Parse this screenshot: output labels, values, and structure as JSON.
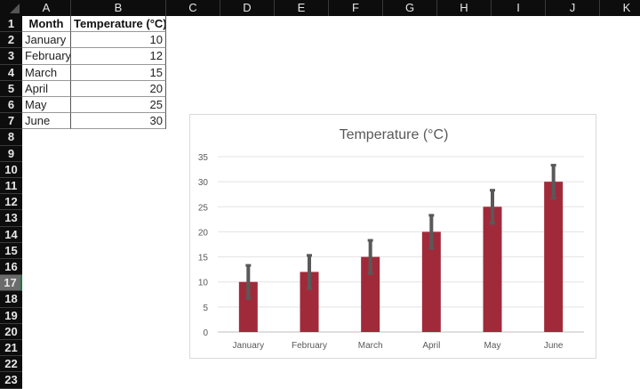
{
  "sheet": {
    "columns": [
      "A",
      "B",
      "C",
      "D",
      "E",
      "F",
      "G",
      "H",
      "I",
      "J",
      "K"
    ],
    "rows": [
      1,
      2,
      3,
      4,
      5,
      6,
      7,
      8,
      9,
      10,
      11,
      12,
      13,
      14,
      15,
      16,
      17,
      18,
      19,
      20,
      21,
      22,
      23
    ],
    "selected_row": 17,
    "headers": [
      "Month",
      "Temperature (°C)"
    ],
    "data": [
      [
        "January",
        "10"
      ],
      [
        "February",
        "12"
      ],
      [
        "March",
        "15"
      ],
      [
        "April",
        "20"
      ],
      [
        "May",
        "25"
      ],
      [
        "June",
        "30"
      ]
    ]
  },
  "chart_data": {
    "type": "bar",
    "title": "Temperature (°C)",
    "categories": [
      "January",
      "February",
      "March",
      "April",
      "May",
      "June"
    ],
    "values": [
      10,
      12,
      15,
      20,
      25,
      30
    ],
    "error_bar": 3.3,
    "ylim": [
      0,
      35
    ],
    "yticks": [
      0,
      5,
      10,
      15,
      20,
      25,
      30,
      35
    ],
    "grid": true,
    "bar_color": "#a12a3a",
    "error_color": "#595959"
  }
}
